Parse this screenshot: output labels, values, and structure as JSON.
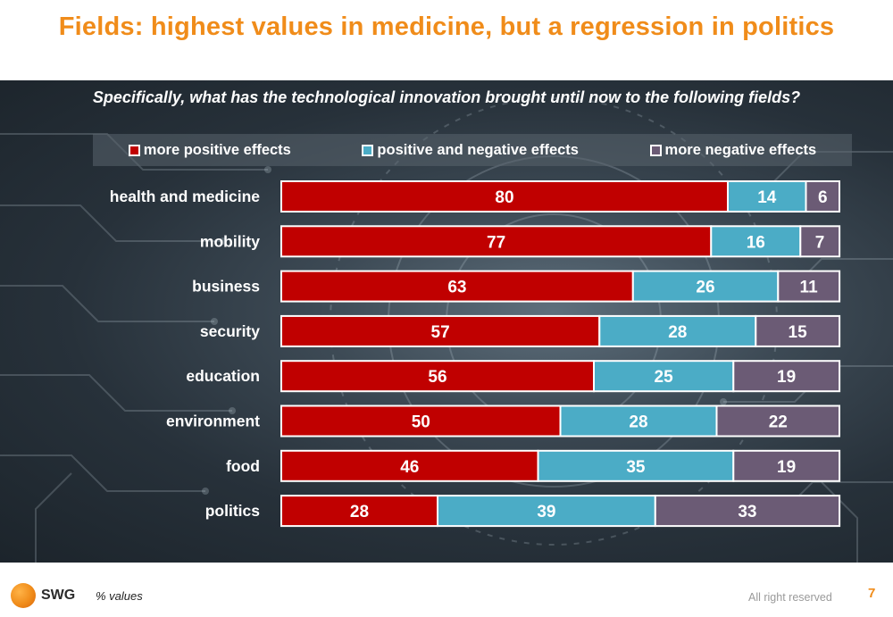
{
  "title": "Fields: highest values in medicine, but a regression in politics",
  "question": "Specifically, what has the technological innovation brought until now to the following fields?",
  "footer": {
    "logo_text": "SWG",
    "note": "% values",
    "rights": "All right reserved",
    "page": "7"
  },
  "chart_data": {
    "type": "bar",
    "orientation": "horizontal",
    "stacked": true,
    "categories": [
      "health and medicine",
      "mobility",
      "business",
      "security",
      "education",
      "environment",
      "food",
      "politics"
    ],
    "series": [
      {
        "name": "more positive effects",
        "color": "#c00000",
        "values": [
          80,
          77,
          63,
          57,
          56,
          50,
          46,
          28
        ]
      },
      {
        "name": "positive and negative effects",
        "color": "#4bacc6",
        "values": [
          14,
          16,
          26,
          28,
          25,
          28,
          35,
          39
        ]
      },
      {
        "name": "more negative effects",
        "color": "#6b5b75",
        "values": [
          6,
          7,
          11,
          15,
          19,
          22,
          19,
          33
        ]
      }
    ],
    "legend_position": "top",
    "data_labels": true,
    "grid": false
  }
}
